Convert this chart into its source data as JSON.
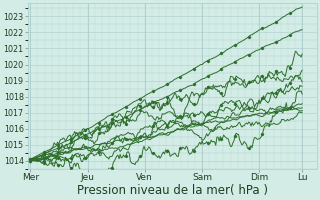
{
  "bg_color": "#d4ece6",
  "grid_color": "#aacccc",
  "line_color": "#2d6e2d",
  "xlabel": "Pression niveau de la mer( hPa )",
  "xlabel_fontsize": 8.5,
  "tick_labels": [
    "Mer",
    "Jeu",
    "Ven",
    "Sam",
    "Dim",
    "Lu"
  ],
  "tick_positions": [
    0,
    48,
    96,
    144,
    192,
    228
  ],
  "ylim": [
    1013.5,
    1023.8
  ],
  "yticks": [
    1014,
    1015,
    1016,
    1017,
    1018,
    1019,
    1020,
    1021,
    1022,
    1023
  ],
  "xlim": [
    -2,
    240
  ],
  "n_points": 240
}
